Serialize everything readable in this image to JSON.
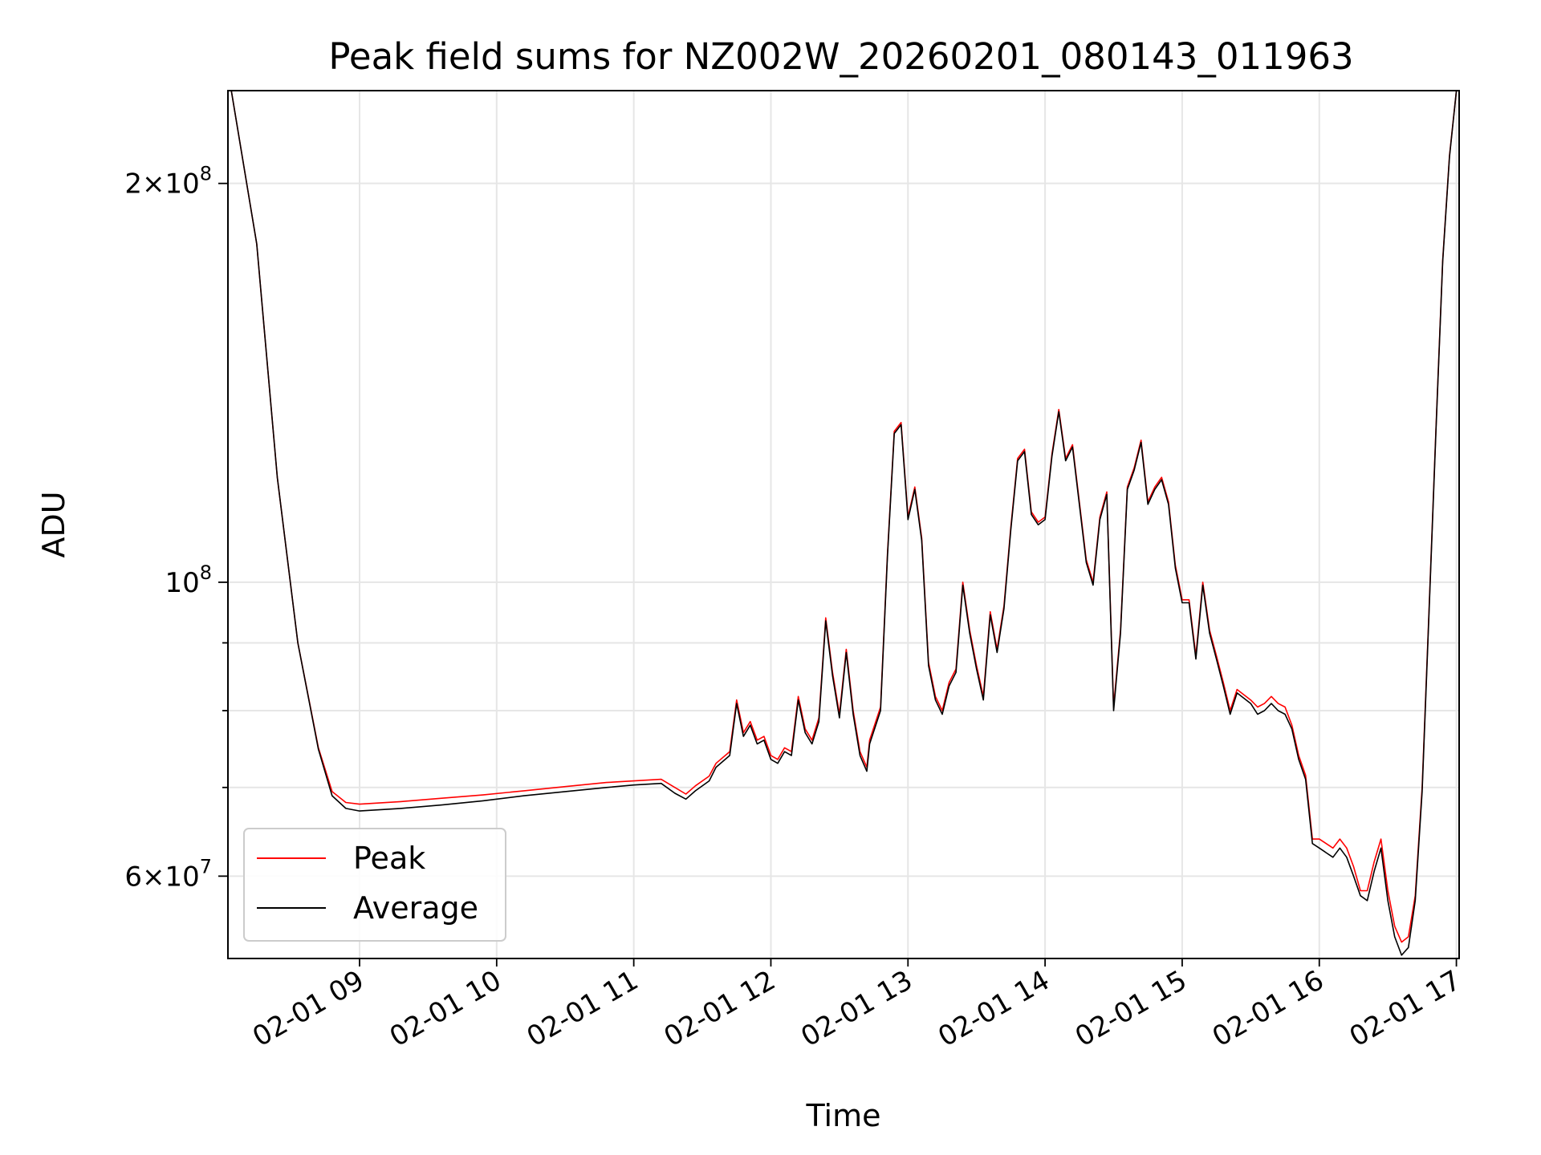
{
  "chart_data": {
    "type": "line",
    "title": "Peak field sums for NZ002W_20260201_080143_011963",
    "xlabel": "Time",
    "ylabel": "ADU",
    "yscale": "log",
    "xlim": [
      8.04,
      17.02
    ],
    "ylim": [
      52000000,
      235000000
    ],
    "grid": true,
    "legend_position": "lower-left",
    "colors": {
      "peak": "#ff0000",
      "average": "#000000"
    },
    "x_ticks": [
      {
        "value": 9,
        "label": "02-01 09"
      },
      {
        "value": 10,
        "label": "02-01 10"
      },
      {
        "value": 11,
        "label": "02-01 11"
      },
      {
        "value": 12,
        "label": "02-01 12"
      },
      {
        "value": 13,
        "label": "02-01 13"
      },
      {
        "value": 14,
        "label": "02-01 14"
      },
      {
        "value": 15,
        "label": "02-01 15"
      },
      {
        "value": 16,
        "label": "02-01 16"
      },
      {
        "value": 17,
        "label": "02-01 17"
      }
    ],
    "y_major_ticks": [
      {
        "value": 60000000,
        "base": "6",
        "exponent": "7"
      },
      {
        "value": 100000000,
        "base": "10",
        "exponent": "8"
      },
      {
        "value": 200000000,
        "base": "2",
        "exponent": "8"
      }
    ],
    "y_minor_ticks": [
      70000000,
      80000000,
      90000000
    ],
    "series": [
      {
        "name": "Peak",
        "color": "#ff0000",
        "points": [
          [
            8.05,
            240000000
          ],
          [
            8.25,
            180000000
          ],
          [
            8.4,
            120000000
          ],
          [
            8.55,
            90000000
          ],
          [
            8.7,
            75000000
          ],
          [
            8.8,
            69500000
          ],
          [
            8.9,
            68200000
          ],
          [
            9.0,
            68000000
          ],
          [
            9.3,
            68300000
          ],
          [
            9.6,
            68700000
          ],
          [
            9.9,
            69100000
          ],
          [
            10.2,
            69600000
          ],
          [
            10.5,
            70100000
          ],
          [
            10.8,
            70600000
          ],
          [
            11.0,
            70800000
          ],
          [
            11.2,
            71000000
          ],
          [
            11.3,
            70000000
          ],
          [
            11.38,
            69200000
          ],
          [
            11.45,
            70200000
          ],
          [
            11.55,
            71400000
          ],
          [
            11.6,
            73000000
          ],
          [
            11.7,
            74500000
          ],
          [
            11.75,
            81500000
          ],
          [
            11.8,
            77000000
          ],
          [
            11.85,
            78500000
          ],
          [
            11.9,
            76000000
          ],
          [
            11.95,
            76500000
          ],
          [
            12.0,
            74000000
          ],
          [
            12.05,
            73500000
          ],
          [
            12.1,
            75000000
          ],
          [
            12.15,
            74500000
          ],
          [
            12.2,
            82000000
          ],
          [
            12.25,
            77500000
          ],
          [
            12.3,
            76000000
          ],
          [
            12.35,
            79000000
          ],
          [
            12.4,
            94000000
          ],
          [
            12.45,
            85500000
          ],
          [
            12.5,
            79500000
          ],
          [
            12.55,
            89000000
          ],
          [
            12.6,
            80000000
          ],
          [
            12.65,
            74500000
          ],
          [
            12.7,
            72500000
          ],
          [
            12.72,
            76000000
          ],
          [
            12.8,
            80500000
          ],
          [
            12.85,
            105000000
          ],
          [
            12.9,
            130000000
          ],
          [
            12.95,
            132000000
          ],
          [
            13.0,
            112000000
          ],
          [
            13.05,
            118000000
          ],
          [
            13.1,
            108000000
          ],
          [
            13.15,
            87000000
          ],
          [
            13.2,
            82000000
          ],
          [
            13.25,
            80000000
          ],
          [
            13.3,
            84000000
          ],
          [
            13.35,
            86000000
          ],
          [
            13.4,
            100000000
          ],
          [
            13.45,
            92000000
          ],
          [
            13.5,
            86500000
          ],
          [
            13.55,
            82000000
          ],
          [
            13.6,
            95000000
          ],
          [
            13.65,
            89000000
          ],
          [
            13.7,
            96000000
          ],
          [
            13.75,
            110000000
          ],
          [
            13.8,
            124000000
          ],
          [
            13.85,
            126000000
          ],
          [
            13.9,
            113000000
          ],
          [
            13.95,
            111000000
          ],
          [
            14.0,
            112000000
          ],
          [
            14.05,
            125000000
          ],
          [
            14.1,
            135000000
          ],
          [
            14.15,
            124000000
          ],
          [
            14.2,
            127000000
          ],
          [
            14.25,
            115000000
          ],
          [
            14.3,
            104000000
          ],
          [
            14.35,
            100000000
          ],
          [
            14.4,
            112000000
          ],
          [
            14.45,
            117000000
          ],
          [
            14.5,
            80500000
          ],
          [
            14.55,
            92000000
          ],
          [
            14.6,
            118000000
          ],
          [
            14.65,
            122000000
          ],
          [
            14.7,
            128000000
          ],
          [
            14.75,
            115000000
          ],
          [
            14.8,
            118000000
          ],
          [
            14.85,
            120000000
          ],
          [
            14.9,
            115000000
          ],
          [
            14.95,
            103000000
          ],
          [
            15.0,
            97000000
          ],
          [
            15.05,
            97000000
          ],
          [
            15.1,
            88000000
          ],
          [
            15.15,
            100000000
          ],
          [
            15.2,
            92000000
          ],
          [
            15.25,
            88000000
          ],
          [
            15.3,
            84000000
          ],
          [
            15.35,
            80000000
          ],
          [
            15.4,
            83000000
          ],
          [
            15.5,
            81500000
          ],
          [
            15.55,
            80500000
          ],
          [
            15.6,
            81000000
          ],
          [
            15.65,
            82000000
          ],
          [
            15.7,
            81000000
          ],
          [
            15.75,
            80500000
          ],
          [
            15.8,
            78000000
          ],
          [
            15.85,
            74000000
          ],
          [
            15.9,
            71500000
          ],
          [
            15.95,
            64000000
          ],
          [
            16.0,
            64000000
          ],
          [
            16.05,
            63500000
          ],
          [
            16.1,
            63000000
          ],
          [
            16.15,
            64000000
          ],
          [
            16.2,
            63000000
          ],
          [
            16.25,
            61000000
          ],
          [
            16.3,
            58500000
          ],
          [
            16.35,
            58500000
          ],
          [
            16.4,
            61500000
          ],
          [
            16.45,
            64000000
          ],
          [
            16.5,
            58500000
          ],
          [
            16.55,
            55000000
          ],
          [
            16.6,
            53500000
          ],
          [
            16.65,
            54000000
          ],
          [
            16.7,
            58000000
          ],
          [
            16.75,
            70000000
          ],
          [
            16.8,
            95000000
          ],
          [
            16.85,
            130000000
          ],
          [
            16.9,
            175000000
          ],
          [
            16.95,
            210000000
          ],
          [
            17.0,
            235000000
          ]
        ]
      },
      {
        "name": "Average",
        "color": "#000000",
        "points": [
          [
            8.05,
            240000000
          ],
          [
            8.25,
            180000000
          ],
          [
            8.4,
            120000000
          ],
          [
            8.55,
            90000000
          ],
          [
            8.7,
            74800000
          ],
          [
            8.8,
            69000000
          ],
          [
            8.9,
            67500000
          ],
          [
            9.0,
            67200000
          ],
          [
            9.3,
            67500000
          ],
          [
            9.6,
            67900000
          ],
          [
            9.9,
            68400000
          ],
          [
            10.2,
            69000000
          ],
          [
            10.5,
            69500000
          ],
          [
            10.8,
            70000000
          ],
          [
            11.0,
            70300000
          ],
          [
            11.2,
            70500000
          ],
          [
            11.3,
            69300000
          ],
          [
            11.38,
            68600000
          ],
          [
            11.45,
            69600000
          ],
          [
            11.55,
            70800000
          ],
          [
            11.6,
            72500000
          ],
          [
            11.7,
            74000000
          ],
          [
            11.75,
            81000000
          ],
          [
            11.8,
            76500000
          ],
          [
            11.85,
            78000000
          ],
          [
            11.9,
            75500000
          ],
          [
            11.95,
            76000000
          ],
          [
            12.0,
            73500000
          ],
          [
            12.05,
            73000000
          ],
          [
            12.1,
            74500000
          ],
          [
            12.15,
            74000000
          ],
          [
            12.2,
            81500000
          ],
          [
            12.25,
            77000000
          ],
          [
            12.3,
            75500000
          ],
          [
            12.35,
            78500000
          ],
          [
            12.4,
            93500000
          ],
          [
            12.45,
            85000000
          ],
          [
            12.5,
            79000000
          ],
          [
            12.55,
            88500000
          ],
          [
            12.6,
            79500000
          ],
          [
            12.65,
            74000000
          ],
          [
            12.7,
            72000000
          ],
          [
            12.72,
            75500000
          ],
          [
            12.8,
            80000000
          ],
          [
            12.85,
            104500000
          ],
          [
            12.9,
            129500000
          ],
          [
            12.95,
            131500000
          ],
          [
            13.0,
            111500000
          ],
          [
            13.05,
            117500000
          ],
          [
            13.1,
            107500000
          ],
          [
            13.15,
            86500000
          ],
          [
            13.2,
            81500000
          ],
          [
            13.25,
            79500000
          ],
          [
            13.3,
            83500000
          ],
          [
            13.35,
            85500000
          ],
          [
            13.4,
            99500000
          ],
          [
            13.45,
            91500000
          ],
          [
            13.5,
            86000000
          ],
          [
            13.55,
            81500000
          ],
          [
            13.6,
            94500000
          ],
          [
            13.65,
            88500000
          ],
          [
            13.7,
            95500000
          ],
          [
            13.75,
            109500000
          ],
          [
            13.8,
            123500000
          ],
          [
            13.85,
            125500000
          ],
          [
            13.9,
            112500000
          ],
          [
            13.95,
            110500000
          ],
          [
            14.0,
            111500000
          ],
          [
            14.05,
            124500000
          ],
          [
            14.1,
            134500000
          ],
          [
            14.15,
            123500000
          ],
          [
            14.2,
            126500000
          ],
          [
            14.25,
            114500000
          ],
          [
            14.3,
            103500000
          ],
          [
            14.35,
            99500000
          ],
          [
            14.4,
            111500000
          ],
          [
            14.45,
            116500000
          ],
          [
            14.5,
            80000000
          ],
          [
            14.55,
            91500000
          ],
          [
            14.6,
            117500000
          ],
          [
            14.65,
            121500000
          ],
          [
            14.7,
            127500000
          ],
          [
            14.75,
            114500000
          ],
          [
            14.8,
            117500000
          ],
          [
            14.85,
            119500000
          ],
          [
            14.9,
            114500000
          ],
          [
            14.95,
            102500000
          ],
          [
            15.0,
            96500000
          ],
          [
            15.05,
            96500000
          ],
          [
            15.1,
            87500000
          ],
          [
            15.15,
            99500000
          ],
          [
            15.2,
            91500000
          ],
          [
            15.25,
            87500000
          ],
          [
            15.3,
            83500000
          ],
          [
            15.35,
            79500000
          ],
          [
            15.4,
            82500000
          ],
          [
            15.5,
            81000000
          ],
          [
            15.55,
            79500000
          ],
          [
            15.6,
            80000000
          ],
          [
            15.65,
            81000000
          ],
          [
            15.7,
            80000000
          ],
          [
            15.75,
            79500000
          ],
          [
            15.8,
            77500000
          ],
          [
            15.85,
            73500000
          ],
          [
            15.9,
            71000000
          ],
          [
            15.95,
            63500000
          ],
          [
            16.0,
            63000000
          ],
          [
            16.05,
            62500000
          ],
          [
            16.1,
            62000000
          ],
          [
            16.15,
            63000000
          ],
          [
            16.2,
            62000000
          ],
          [
            16.25,
            60000000
          ],
          [
            16.3,
            58000000
          ],
          [
            16.35,
            57500000
          ],
          [
            16.4,
            60500000
          ],
          [
            16.45,
            63000000
          ],
          [
            16.5,
            57500000
          ],
          [
            16.55,
            54000000
          ],
          [
            16.6,
            52300000
          ],
          [
            16.65,
            53000000
          ],
          [
            16.7,
            57500000
          ],
          [
            16.75,
            69500000
          ],
          [
            16.8,
            94500000
          ],
          [
            16.85,
            129500000
          ],
          [
            16.9,
            174500000
          ],
          [
            16.95,
            209500000
          ],
          [
            17.0,
            235000000
          ]
        ]
      }
    ]
  }
}
